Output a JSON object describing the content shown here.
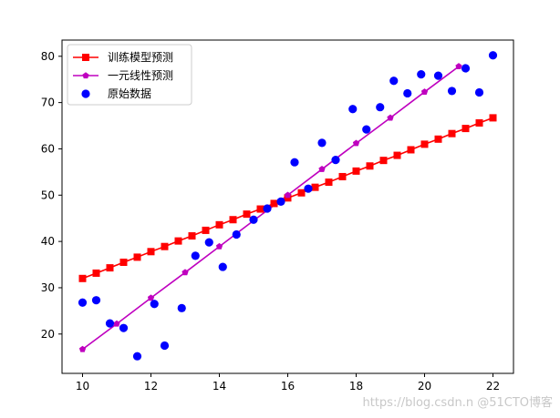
{
  "chart_data": {
    "type": "line",
    "title": "",
    "xlabel": "",
    "ylabel": "",
    "xlim": [
      9.4,
      22.6
    ],
    "ylim": [
      11.5,
      83.5
    ],
    "xticks": [
      10,
      12,
      14,
      16,
      18,
      20,
      22
    ],
    "yticks": [
      20,
      30,
      40,
      50,
      60,
      70,
      80
    ],
    "grid": false,
    "legend_position": "upper-left",
    "series": [
      {
        "name": "训练模型预测",
        "kind": "line",
        "color": "#ff0000",
        "marker": "square",
        "x": [
          10.0,
          10.4,
          10.8,
          11.2,
          11.6,
          12.0,
          12.4,
          12.8,
          13.2,
          13.6,
          14.0,
          14.4,
          14.8,
          15.2,
          15.6,
          16.0,
          16.4,
          16.8,
          17.2,
          17.6,
          18.0,
          18.4,
          18.8,
          19.2,
          19.6,
          20.0,
          20.4,
          20.8,
          21.2,
          21.6,
          22.0
        ],
        "y": [
          32.0,
          33.15,
          34.3,
          35.5,
          36.6,
          37.8,
          38.9,
          40.1,
          41.2,
          42.4,
          43.6,
          44.7,
          45.9,
          47.0,
          48.2,
          49.4,
          50.5,
          51.7,
          52.8,
          54.0,
          55.2,
          56.3,
          57.5,
          58.6,
          59.8,
          61.0,
          62.1,
          63.3,
          64.4,
          65.6,
          66.7
        ]
      },
      {
        "name": "一元线性预测",
        "kind": "line",
        "color": "#bf00bf",
        "marker": "pentagon",
        "x": [
          10,
          11,
          12,
          13,
          14,
          15,
          16,
          17,
          18,
          19,
          20,
          21
        ],
        "y": [
          16.7,
          22.2,
          27.8,
          33.3,
          38.9,
          44.5,
          50.0,
          55.6,
          61.2,
          66.7,
          72.3,
          77.8
        ]
      },
      {
        "name": "原始数据",
        "kind": "scatter",
        "color": "#0000ff",
        "marker": "circle",
        "x": [
          10.0,
          10.4,
          10.8,
          11.2,
          11.6,
          12.1,
          12.4,
          12.9,
          13.3,
          13.7,
          14.1,
          14.5,
          15.0,
          15.4,
          15.8,
          16.2,
          16.6,
          17.0,
          17.4,
          17.9,
          18.3,
          18.7,
          19.1,
          19.5,
          19.9,
          20.4,
          20.8,
          21.2,
          21.6,
          22.0
        ],
        "y": [
          26.8,
          27.3,
          22.3,
          21.3,
          15.2,
          26.5,
          17.5,
          25.6,
          36.9,
          39.8,
          34.5,
          41.5,
          44.7,
          47.1,
          48.6,
          57.1,
          51.4,
          61.3,
          57.6,
          68.6,
          64.2,
          69.0,
          74.7,
          72.0,
          76.1,
          75.8,
          72.5,
          77.4,
          72.2,
          80.2
        ]
      }
    ]
  },
  "watermark": "https://blog.csdn.n  @51CTO博客"
}
